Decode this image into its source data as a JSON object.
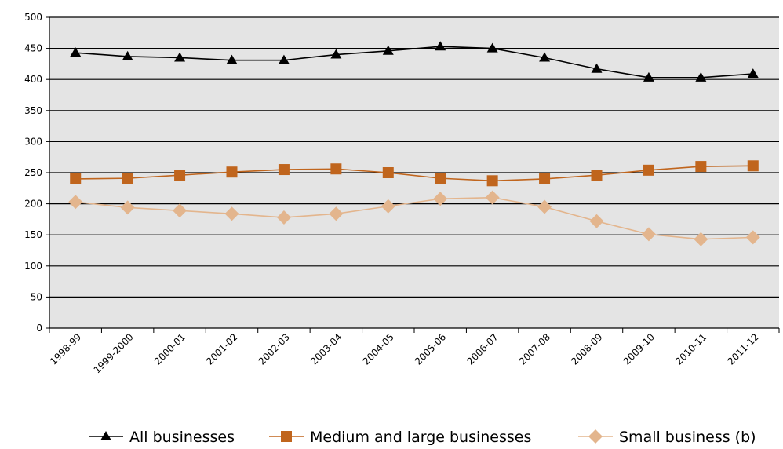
{
  "chart_data": {
    "type": "line",
    "categories": [
      "1998-99",
      "1999-2000",
      "2000-01",
      "2001-02",
      "2002-03",
      "2003-04",
      "2004-05",
      "2005-06",
      "2006-07",
      "2007-08",
      "2008-09",
      "2009-10",
      "2010-11",
      "2011-12"
    ],
    "ylim": [
      0,
      500
    ],
    "yticks": [
      0,
      50,
      100,
      150,
      200,
      250,
      300,
      350,
      400,
      450,
      500
    ],
    "grid": true,
    "legend_position": "bottom",
    "series": [
      {
        "name": "All businesses",
        "marker": "triangle",
        "color": "#000000",
        "values": [
          443,
          437,
          435,
          431,
          431,
          440,
          446,
          453,
          450,
          435,
          417,
          403,
          403,
          409
        ]
      },
      {
        "name": "Medium and large businesses",
        "marker": "square",
        "color": "#c0651d",
        "values": [
          240,
          241,
          246,
          251,
          255,
          256,
          250,
          241,
          237,
          240,
          246,
          254,
          260,
          261
        ]
      },
      {
        "name": "Small business (b)",
        "marker": "diamond",
        "color": "#e3b58d",
        "values": [
          203,
          194,
          189,
          184,
          178,
          184,
          196,
          208,
          210,
          195,
          172,
          151,
          143,
          146
        ]
      }
    ]
  }
}
